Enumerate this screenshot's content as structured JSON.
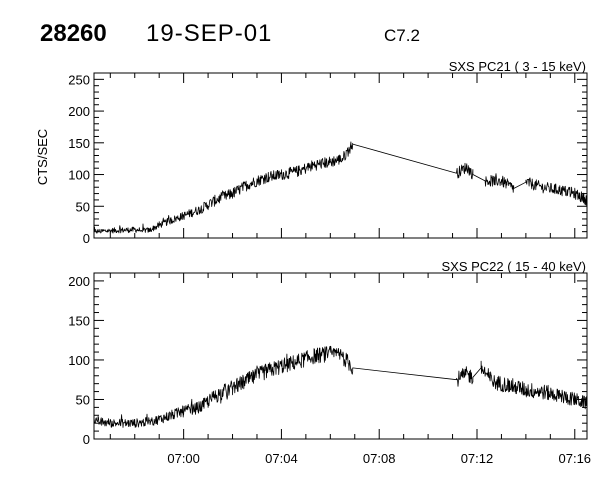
{
  "header": {
    "id": "28260",
    "date": "19-SEP-01",
    "flare_class": "C7.2"
  },
  "chart_data": [
    {
      "type": "line",
      "title": "SXS PC21  (  3 - 15 keV)",
      "xlabel": "",
      "ylabel": "CTS/SEC",
      "xlim": [
        "06:56:20",
        "07:16:30"
      ],
      "ylim": [
        0,
        260
      ],
      "yticks": [
        0,
        50,
        100,
        150,
        200,
        250
      ],
      "xticks": [
        "07:00",
        "07:04",
        "07:08",
        "07:12",
        "07:16"
      ],
      "show_x_tick_labels": false,
      "grid": false,
      "series": [
        {
          "values_note": "approximate envelope of the noisy count-rate trace",
          "points": [
            [
              "06:56:20",
              10
            ],
            [
              "06:57:10",
              12
            ],
            [
              "06:58:00",
              13
            ],
            [
              "06:58:35",
              12
            ],
            [
              "06:59:00",
              20
            ],
            [
              "06:59:30",
              28
            ],
            [
              "07:00:00",
              35
            ],
            [
              "07:00:40",
              45
            ],
            [
              "07:01:20",
              60
            ],
            [
              "07:02:00",
              70
            ],
            [
              "07:02:40",
              85
            ],
            [
              "07:03:20",
              95
            ],
            [
              "07:04:00",
              100
            ],
            [
              "07:04:40",
              105
            ],
            [
              "07:05:20",
              115
            ],
            [
              "07:06:00",
              120
            ],
            [
              "07:06:30",
              125
            ],
            [
              "07:06:55",
              148
            ],
            [
              "07:11:10",
              102
            ],
            [
              "07:11:35",
              112
            ],
            [
              "07:11:50",
              100
            ],
            [
              "07:12:20",
              90
            ],
            [
              "07:13:00",
              90
            ],
            [
              "07:13:30",
              78
            ],
            [
              "07:14:00",
              88
            ],
            [
              "07:14:40",
              80
            ],
            [
              "07:15:20",
              76
            ],
            [
              "07:16:00",
              70
            ],
            [
              "07:16:30",
              60
            ]
          ],
          "gaps": [
            [
              "07:06:55",
              "07:11:10"
            ],
            [
              "07:11:50",
              "07:12:20"
            ],
            [
              "07:13:30",
              "07:14:00"
            ]
          ],
          "noise_amplitude": 9
        }
      ]
    },
    {
      "type": "line",
      "title": "SXS PC22  ( 15 - 40 keV)",
      "xlabel": "",
      "ylabel": "",
      "xlim": [
        "06:56:20",
        "07:16:30"
      ],
      "ylim": [
        0,
        210
      ],
      "yticks": [
        0,
        50,
        100,
        150,
        200
      ],
      "xticks": [
        "07:00",
        "07:04",
        "07:08",
        "07:12",
        "07:16"
      ],
      "show_x_tick_labels": true,
      "grid": false,
      "series": [
        {
          "values_note": "approximate envelope of the noisy count-rate trace",
          "points": [
            [
              "06:56:20",
              22
            ],
            [
              "06:57:10",
              20
            ],
            [
              "06:58:00",
              20
            ],
            [
              "06:58:40",
              22
            ],
            [
              "06:59:00",
              25
            ],
            [
              "06:59:30",
              30
            ],
            [
              "07:00:00",
              35
            ],
            [
              "07:00:40",
              40
            ],
            [
              "07:01:20",
              55
            ],
            [
              "07:02:00",
              65
            ],
            [
              "07:02:40",
              75
            ],
            [
              "07:03:20",
              85
            ],
            [
              "07:04:00",
              92
            ],
            [
              "07:04:40",
              98
            ],
            [
              "07:05:20",
              105
            ],
            [
              "07:06:00",
              108
            ],
            [
              "07:06:30",
              105
            ],
            [
              "07:06:55",
              90
            ],
            [
              "07:11:10",
              75
            ],
            [
              "07:11:35",
              82
            ],
            [
              "07:11:50",
              78
            ],
            [
              "07:12:10",
              90
            ],
            [
              "07:12:40",
              72
            ],
            [
              "07:13:20",
              68
            ],
            [
              "07:14:00",
              62
            ],
            [
              "07:14:40",
              60
            ],
            [
              "07:15:20",
              55
            ],
            [
              "07:16:00",
              50
            ],
            [
              "07:16:30",
              45
            ]
          ],
          "gaps": [
            [
              "07:06:55",
              "07:11:10"
            ],
            [
              "07:11:50",
              "07:12:10"
            ]
          ],
          "noise_amplitude": 10
        }
      ]
    }
  ]
}
